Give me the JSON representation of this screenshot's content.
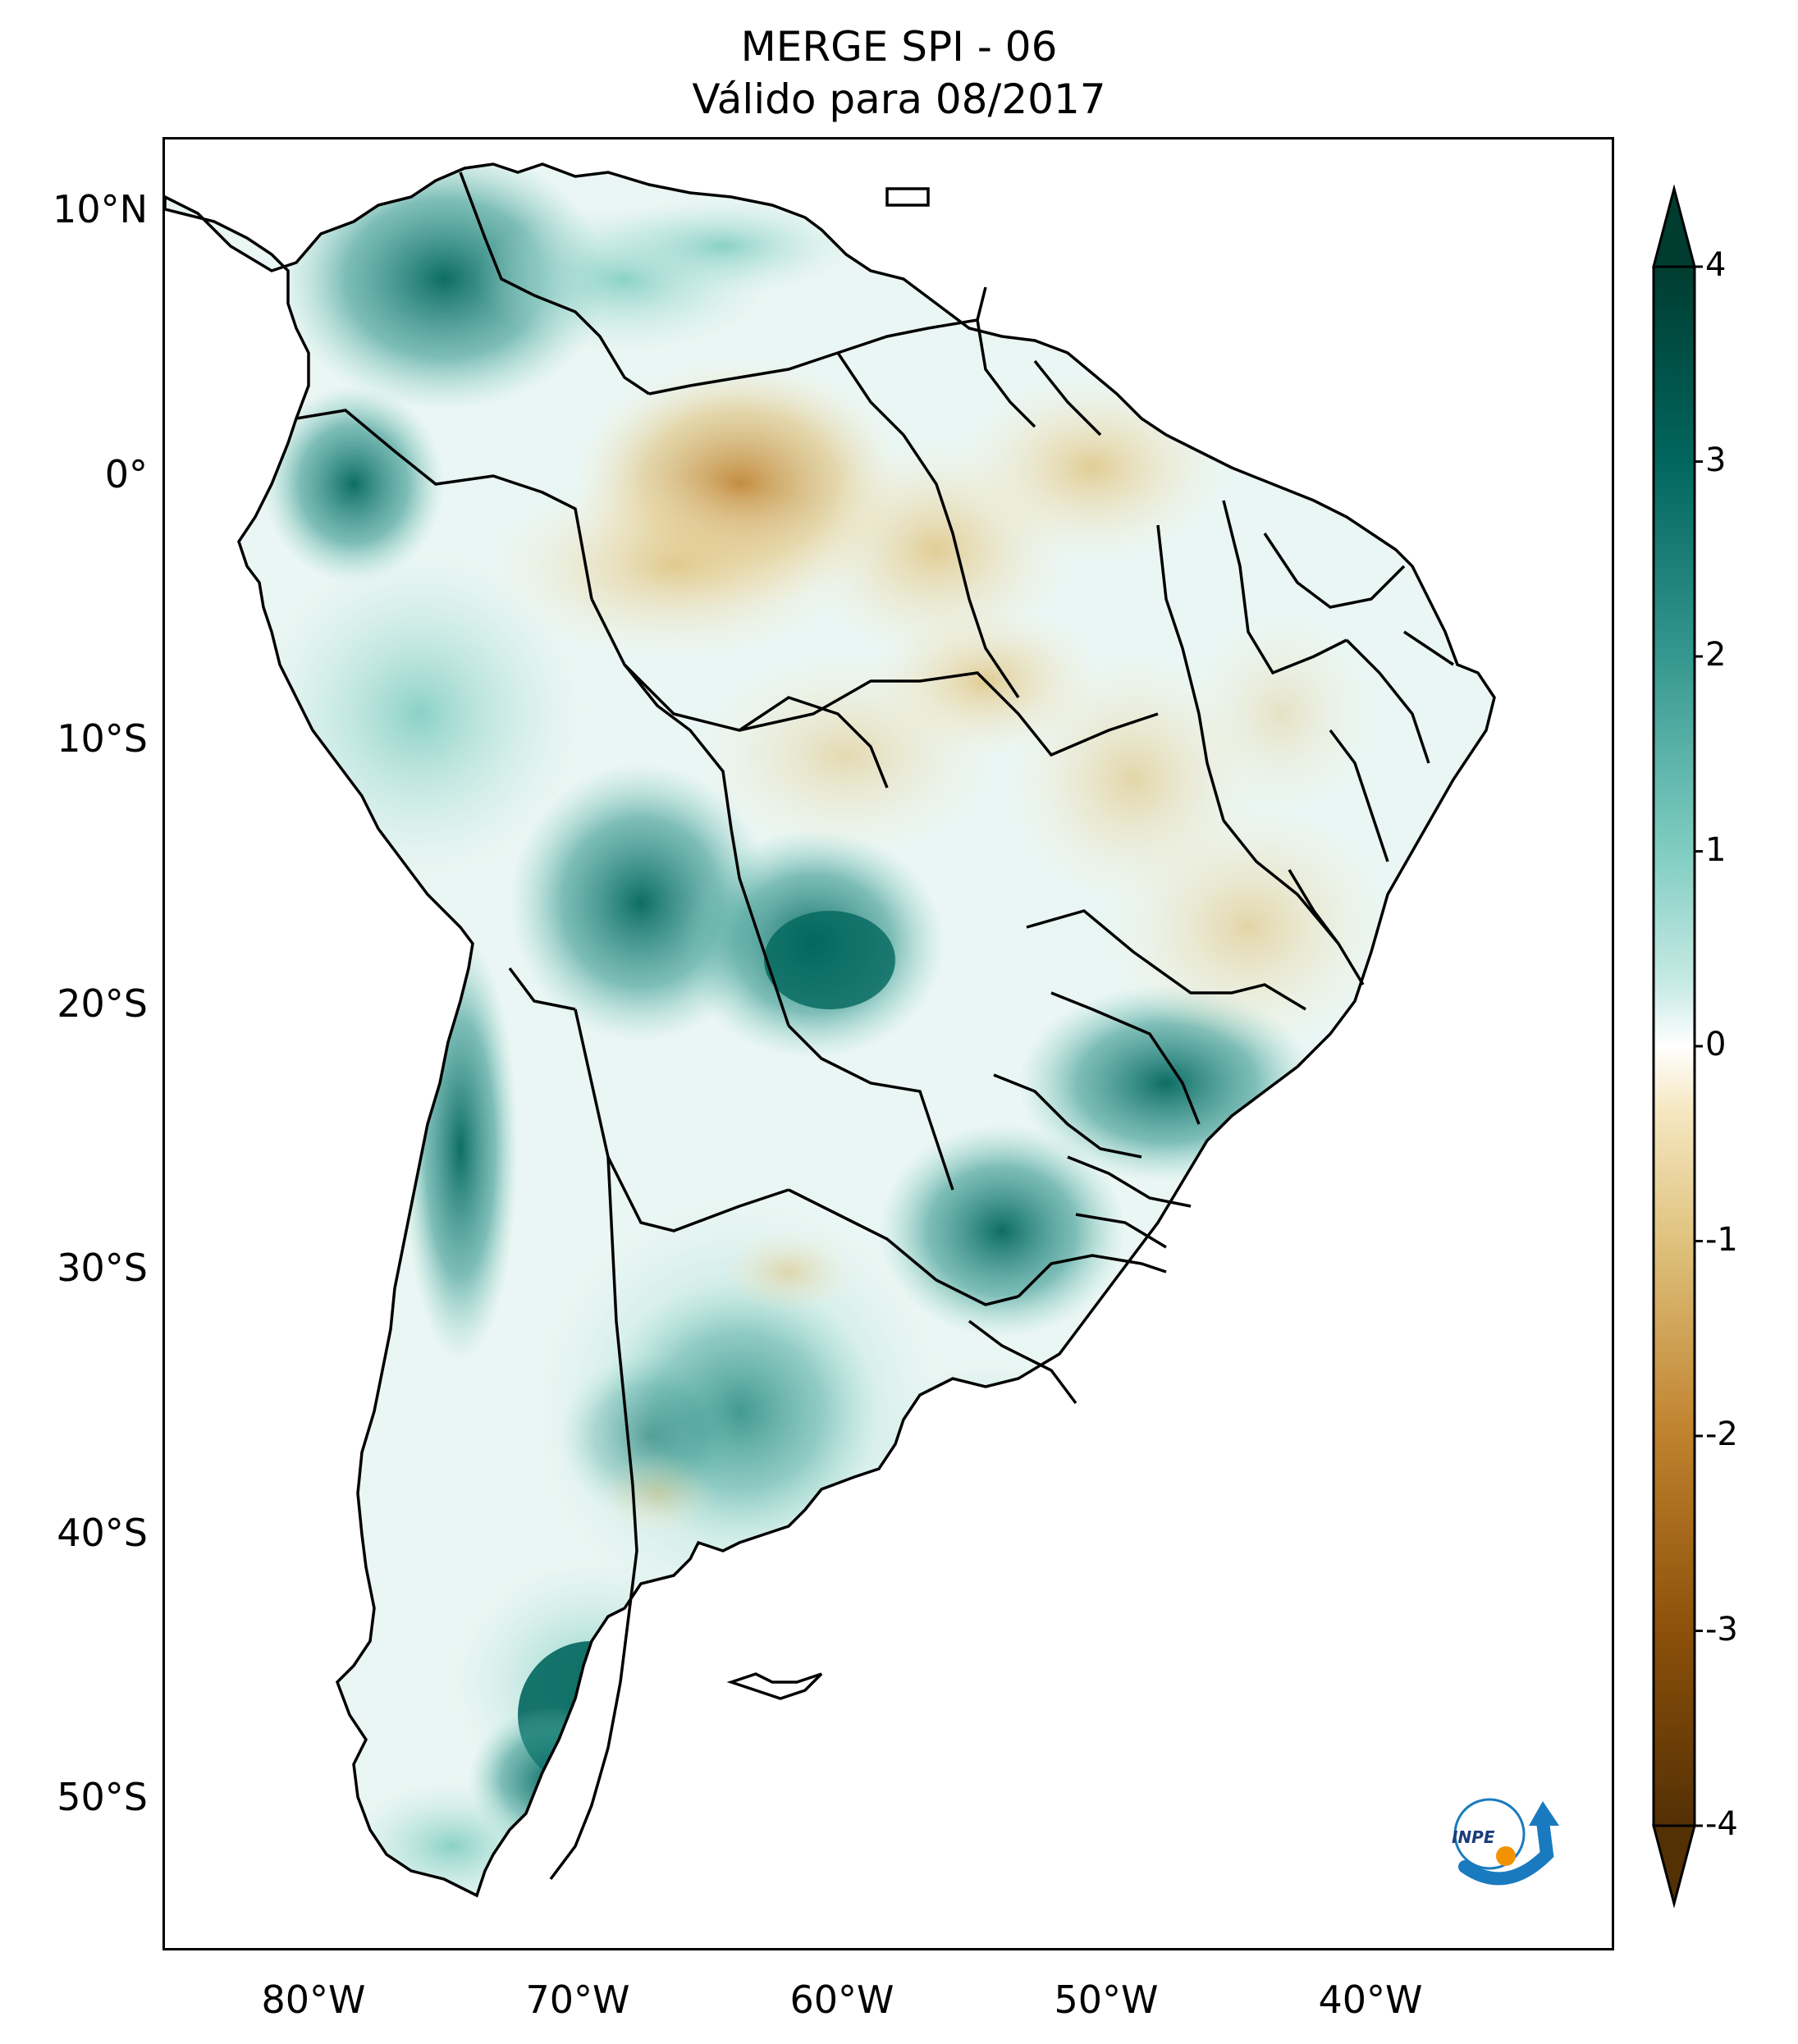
{
  "title": {
    "line1": "MERGE   SPI - 06",
    "line2": "Válido para 08/2017"
  },
  "map": {
    "region": "South America",
    "variable": "SPI - 06",
    "lat_labels": [
      "10°N",
      "0°",
      "10°S",
      "20°S",
      "30°S",
      "40°S",
      "50°S"
    ],
    "lon_labels": [
      "80°W",
      "70°W",
      "60°W",
      "50°W",
      "40°W"
    ],
    "lat_range": [
      -56,
      13
    ],
    "lon_range": [
      -85,
      -30
    ]
  },
  "colorbar": {
    "colormap": "BrBG",
    "ticks": [
      "4",
      "3",
      "2",
      "1",
      "0",
      "-1",
      "-2",
      "-3",
      "-4"
    ],
    "range": [
      -4,
      4
    ],
    "extend": "both",
    "colors": [
      "#543005",
      "#8c510a",
      "#bf812d",
      "#dfc27d",
      "#f6e8c3",
      "#ffffff",
      "#c7eae5",
      "#80cdc1",
      "#35978f",
      "#01665e",
      "#003c30"
    ]
  },
  "logo": {
    "text": "INPE",
    "icon": "inpe-logo-icon"
  }
}
